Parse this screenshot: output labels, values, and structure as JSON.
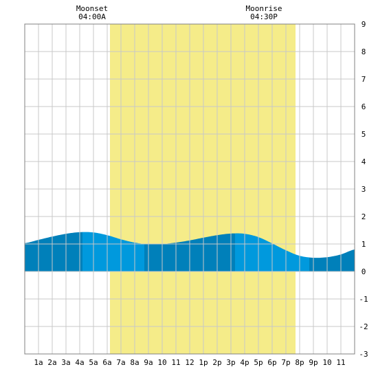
{
  "chart_data": {
    "type": "area",
    "title": "",
    "xlabel": "",
    "ylabel": "",
    "x_range": [
      0,
      24
    ],
    "ylim": [
      -3,
      9
    ],
    "y_ticks": [
      -3,
      -2,
      -1,
      0,
      1,
      2,
      3,
      4,
      5,
      6,
      7,
      8,
      9
    ],
    "x_tick_labels": [
      "1a",
      "2a",
      "3a",
      "4a",
      "5a",
      "6a",
      "7a",
      "8a",
      "9a",
      "10",
      "11",
      "12",
      "1p",
      "2p",
      "3p",
      "4p",
      "5p",
      "6p",
      "7p",
      "8p",
      "9p",
      "10",
      "11"
    ],
    "grid": true,
    "daylight": {
      "start": 6.2,
      "end": 19.7
    },
    "annotations": [
      {
        "label": "Moonset",
        "time": "04:00A",
        "x": 4.0
      },
      {
        "label": "Moonrise",
        "time": "04:30P",
        "x": 16.5
      }
    ],
    "tide_series": {
      "name": "",
      "x": [
        0,
        1,
        2,
        3,
        4,
        5,
        6,
        7,
        8,
        9,
        10,
        11,
        12,
        13,
        14,
        15,
        16,
        17,
        18,
        19,
        20,
        21,
        22,
        23,
        24
      ],
      "values": [
        1.03,
        1.15,
        1.27,
        1.37,
        1.43,
        1.42,
        1.32,
        1.17,
        1.05,
        0.99,
        1.0,
        1.05,
        1.13,
        1.23,
        1.32,
        1.38,
        1.37,
        1.25,
        1.02,
        0.77,
        0.57,
        0.5,
        0.52,
        0.62,
        0.8
      ]
    },
    "tide_segments": [
      {
        "start": 0,
        "end": 4.2,
        "color": "#0080ba"
      },
      {
        "start": 4.2,
        "end": 8.7,
        "color": "#0099dd"
      },
      {
        "start": 8.7,
        "end": 15.3,
        "color": "#0080ba"
      },
      {
        "start": 15.3,
        "end": 20.7,
        "color": "#0099dd"
      },
      {
        "start": 20.7,
        "end": 24,
        "color": "#0080ba"
      }
    ],
    "colors": {
      "daylight": "#f5ec89",
      "grid": "#c8c8c8",
      "frame": "#808080",
      "background": "#ffffff"
    }
  }
}
